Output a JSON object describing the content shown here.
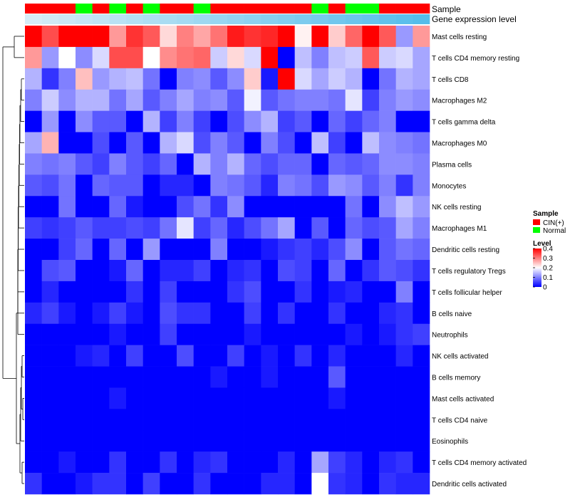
{
  "chart_data": {
    "type": "heatmap",
    "annotation_tracks": {
      "sample_label": "Sample",
      "expression_label": "Gene expression level"
    },
    "samples": [
      "CIN(+)",
      "CIN(+)",
      "CIN(+)",
      "Normal",
      "CIN(+)",
      "Normal",
      "CIN(+)",
      "Normal",
      "CIN(+)",
      "CIN(+)",
      "Normal",
      "CIN(+)",
      "CIN(+)",
      "CIN(+)",
      "CIN(+)",
      "CIN(+)",
      "CIN(+)",
      "Normal",
      "CIN(+)",
      "Normal",
      "Normal",
      "CIN(+)",
      "CIN(+)",
      "CIN(+)"
    ],
    "expression_track": [
      0.05,
      0.07,
      0.09,
      0.11,
      0.13,
      0.15,
      0.17,
      0.19,
      0.21,
      0.23,
      0.25,
      0.27,
      0.29,
      0.31,
      0.33,
      0.35,
      0.37,
      0.39,
      0.41,
      0.43,
      0.45,
      0.47,
      0.49,
      0.51
    ],
    "rows": [
      {
        "label": "Mast cells resting",
        "values": [
          0.4,
          0.34,
          0.4,
          0.4,
          0.4,
          0.28,
          0.36,
          0.33,
          0.23,
          0.3,
          0.27,
          0.31,
          0.38,
          0.36,
          0.37,
          0.4,
          0.21,
          0.4,
          0.24,
          0.32,
          0.4,
          0.33,
          0.12,
          0.28
        ]
      },
      {
        "label": "T cells CD4 memory resting",
        "values": [
          0.28,
          0.12,
          0.2,
          0.11,
          0.17,
          0.34,
          0.34,
          0.2,
          0.29,
          0.31,
          0.32,
          0.16,
          0.23,
          0.17,
          0.4,
          0.0,
          0.15,
          0.1,
          0.15,
          0.16,
          0.33,
          0.16,
          0.17,
          0.13
        ]
      },
      {
        "label": "T cells CD8",
        "values": [
          0.14,
          0.04,
          0.1,
          0.25,
          0.12,
          0.14,
          0.15,
          0.09,
          0.0,
          0.1,
          0.11,
          0.07,
          0.11,
          0.24,
          0.02,
          0.4,
          0.17,
          0.13,
          0.16,
          0.14,
          0.0,
          0.09,
          0.14,
          0.13
        ]
      },
      {
        "label": "Macrophages M2",
        "values": [
          0.1,
          0.16,
          0.11,
          0.14,
          0.14,
          0.09,
          0.13,
          0.07,
          0.1,
          0.13,
          0.1,
          0.11,
          0.07,
          0.19,
          0.07,
          0.09,
          0.1,
          0.1,
          0.09,
          0.18,
          0.05,
          0.1,
          0.12,
          0.11
        ]
      },
      {
        "label": "T cells gamma delta",
        "values": [
          0.0,
          0.12,
          0.0,
          0.11,
          0.07,
          0.07,
          0.0,
          0.14,
          0.05,
          0.1,
          0.05,
          0.0,
          0.06,
          0.11,
          0.14,
          0.05,
          0.07,
          0.0,
          0.08,
          0.05,
          0.08,
          0.1,
          0.0,
          0.0
        ]
      },
      {
        "label": "Macrophages M0",
        "values": [
          0.13,
          0.26,
          0.0,
          0.0,
          0.06,
          0.0,
          0.07,
          0.0,
          0.14,
          0.17,
          0.06,
          0.1,
          0.07,
          0.0,
          0.1,
          0.06,
          0.0,
          0.15,
          0.05,
          0.0,
          0.15,
          0.11,
          0.1,
          0.09
        ]
      },
      {
        "label": "Plasma cells",
        "values": [
          0.1,
          0.09,
          0.1,
          0.07,
          0.05,
          0.1,
          0.07,
          0.05,
          0.08,
          0.0,
          0.14,
          0.1,
          0.14,
          0.08,
          0.06,
          0.08,
          0.08,
          0.0,
          0.08,
          0.07,
          0.08,
          0.11,
          0.11,
          0.1
        ]
      },
      {
        "label": "Monocytes",
        "values": [
          0.07,
          0.06,
          0.09,
          0.0,
          0.08,
          0.07,
          0.07,
          0.0,
          0.03,
          0.03,
          0.0,
          0.1,
          0.09,
          0.07,
          0.03,
          0.1,
          0.09,
          0.06,
          0.12,
          0.11,
          0.07,
          0.1,
          0.04,
          0.1
        ]
      },
      {
        "label": "NK cells resting",
        "values": [
          0.0,
          0.0,
          0.09,
          0.0,
          0.0,
          0.08,
          0.02,
          0.0,
          0.0,
          0.06,
          0.09,
          0.04,
          0.11,
          0.0,
          0.0,
          0.0,
          0.0,
          0.0,
          0.0,
          0.09,
          0.0,
          0.11,
          0.15,
          0.12
        ]
      },
      {
        "label": "Macrophages M1",
        "values": [
          0.05,
          0.04,
          0.05,
          0.07,
          0.05,
          0.05,
          0.06,
          0.05,
          0.09,
          0.18,
          0.05,
          0.08,
          0.03,
          0.06,
          0.09,
          0.13,
          0.0,
          0.07,
          0.0,
          0.08,
          0.06,
          0.07,
          0.13,
          0.1
        ]
      },
      {
        "label": "Dendritic cells resting",
        "values": [
          0.0,
          0.0,
          0.05,
          0.08,
          0.0,
          0.08,
          0.0,
          0.12,
          0.0,
          0.0,
          0.0,
          0.1,
          0.0,
          0.0,
          0.02,
          0.04,
          0.05,
          0.03,
          0.06,
          0.11,
          0.0,
          0.07,
          0.09,
          0.08
        ]
      },
      {
        "label": "T cells regulatory  Tregs",
        "values": [
          0.0,
          0.06,
          0.07,
          0.0,
          0.0,
          0.02,
          0.08,
          0.0,
          0.03,
          0.03,
          0.05,
          0.0,
          0.03,
          0.04,
          0.0,
          0.06,
          0.05,
          0.0,
          0.08,
          0.0,
          0.04,
          0.07,
          0.06,
          0.04
        ]
      },
      {
        "label": "T cells follicular helper",
        "values": [
          0.0,
          0.03,
          0.0,
          0.0,
          0.0,
          0.0,
          0.04,
          0.0,
          0.05,
          0.0,
          0.0,
          0.0,
          0.04,
          0.06,
          0.0,
          0.0,
          0.04,
          0.0,
          0.02,
          0.03,
          0.0,
          0.0,
          0.1,
          0.0
        ]
      },
      {
        "label": "B cells naive",
        "values": [
          0.03,
          0.05,
          0.02,
          0.0,
          0.02,
          0.05,
          0.02,
          0.0,
          0.06,
          0.04,
          0.04,
          0.0,
          0.0,
          0.05,
          0.0,
          0.04,
          0.0,
          0.0,
          0.04,
          0.0,
          0.0,
          0.03,
          0.04,
          0.0
        ]
      },
      {
        "label": "Neutrophils",
        "values": [
          0.0,
          0.0,
          0.0,
          0.0,
          0.0,
          0.02,
          0.0,
          0.0,
          0.05,
          0.0,
          0.0,
          0.0,
          0.0,
          0.02,
          0.0,
          0.0,
          0.0,
          0.0,
          0.0,
          0.02,
          0.0,
          0.02,
          0.04,
          0.05
        ]
      },
      {
        "label": "NK cells activated",
        "values": [
          0.0,
          0.0,
          0.0,
          0.02,
          0.03,
          0.0,
          0.05,
          0.0,
          0.0,
          0.06,
          0.0,
          0.0,
          0.05,
          0.0,
          0.02,
          0.0,
          0.04,
          0.0,
          0.03,
          0.0,
          0.0,
          0.0,
          0.03,
          0.0
        ]
      },
      {
        "label": "B cells memory",
        "values": [
          0.0,
          0.0,
          0.0,
          0.0,
          0.0,
          0.0,
          0.0,
          0.0,
          0.0,
          0.0,
          0.0,
          0.02,
          0.0,
          0.0,
          0.02,
          0.0,
          0.0,
          0.0,
          0.07,
          0.0,
          0.0,
          0.0,
          0.0,
          0.0
        ]
      },
      {
        "label": "Mast cells activated",
        "values": [
          0.0,
          0.0,
          0.0,
          0.0,
          0.0,
          0.02,
          0.0,
          0.0,
          0.0,
          0.0,
          0.0,
          0.0,
          0.0,
          0.0,
          0.0,
          0.0,
          0.0,
          0.0,
          0.02,
          0.0,
          0.0,
          0.0,
          0.0,
          0.0
        ]
      },
      {
        "label": "T cells CD4 naive",
        "values": [
          0.0,
          0.0,
          0.0,
          0.0,
          0.0,
          0.0,
          0.0,
          0.0,
          0.0,
          0.0,
          0.0,
          0.0,
          0.0,
          0.0,
          0.0,
          0.0,
          0.0,
          0.0,
          0.0,
          0.0,
          0.0,
          0.0,
          0.0,
          0.0
        ]
      },
      {
        "label": "Eosinophils",
        "values": [
          0.0,
          0.0,
          0.0,
          0.0,
          0.0,
          0.0,
          0.0,
          0.0,
          0.0,
          0.0,
          0.0,
          0.0,
          0.0,
          0.0,
          0.0,
          0.0,
          0.0,
          0.0,
          0.0,
          0.0,
          0.0,
          0.0,
          0.0,
          0.0
        ]
      },
      {
        "label": "T cells CD4 memory activated",
        "values": [
          0.0,
          0.0,
          0.02,
          0.0,
          0.0,
          0.04,
          0.0,
          0.0,
          0.04,
          0.0,
          0.03,
          0.04,
          0.0,
          0.0,
          0.0,
          0.03,
          0.0,
          0.13,
          0.05,
          0.03,
          0.0,
          0.03,
          0.04,
          0.0
        ]
      },
      {
        "label": "Dendritic cells activated",
        "values": [
          0.04,
          0.0,
          0.0,
          0.02,
          0.04,
          0.04,
          0.0,
          0.05,
          0.0,
          0.0,
          0.04,
          0.0,
          0.0,
          0.0,
          0.03,
          0.03,
          0.0,
          0.2,
          0.04,
          0.03,
          0.0,
          0.04,
          0.03,
          0.03
        ]
      }
    ],
    "legend": {
      "sample_title": "Sample",
      "sample_entries": [
        {
          "label": "CIN(+)",
          "color": "#ff0000"
        },
        {
          "label": "Normal",
          "color": "#00ff00"
        }
      ],
      "level_title": "Level",
      "level_ticks": [
        "0.4",
        "0.3",
        "0.2",
        "0.1",
        "0"
      ],
      "level_tick_values": [
        0.4,
        0.3,
        0.2,
        0.1,
        0
      ],
      "range": [
        0,
        0.4
      ]
    },
    "colors": {
      "low": "#0000ff",
      "mid": "#ffffff",
      "high": "#ff0000",
      "expression_low": "#d6ecf7",
      "expression_high": "#55bdea"
    }
  }
}
